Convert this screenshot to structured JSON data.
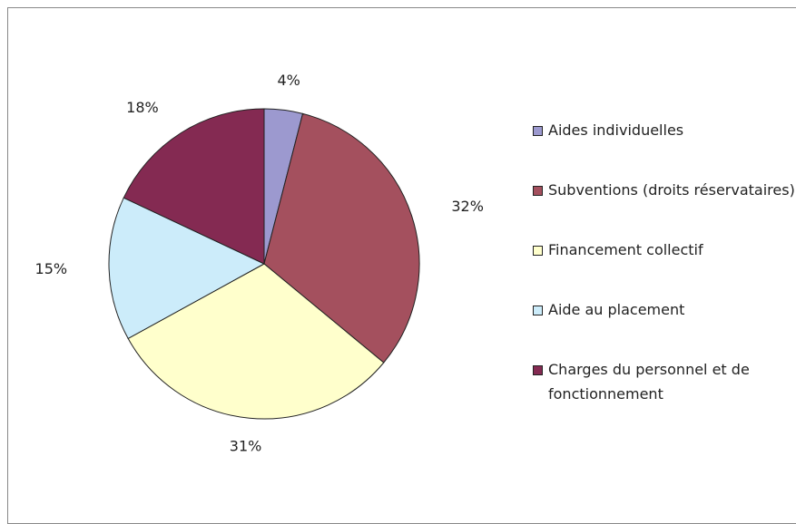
{
  "chart_data": {
    "type": "pie",
    "categories": [
      "Aides individuelles",
      "Subventions (droits réservataires)",
      "Financement collectif",
      "Aide au placement",
      "Charges du personnel et de fonctionnement"
    ],
    "values": [
      4,
      32,
      31,
      15,
      18
    ],
    "value_labels": [
      "4%",
      "32%",
      "31%",
      "15%",
      "18%"
    ],
    "colors": [
      "#9c99cf",
      "#a4505e",
      "#ffffcc",
      "#ccecfa",
      "#842a52"
    ],
    "legend": "right"
  }
}
